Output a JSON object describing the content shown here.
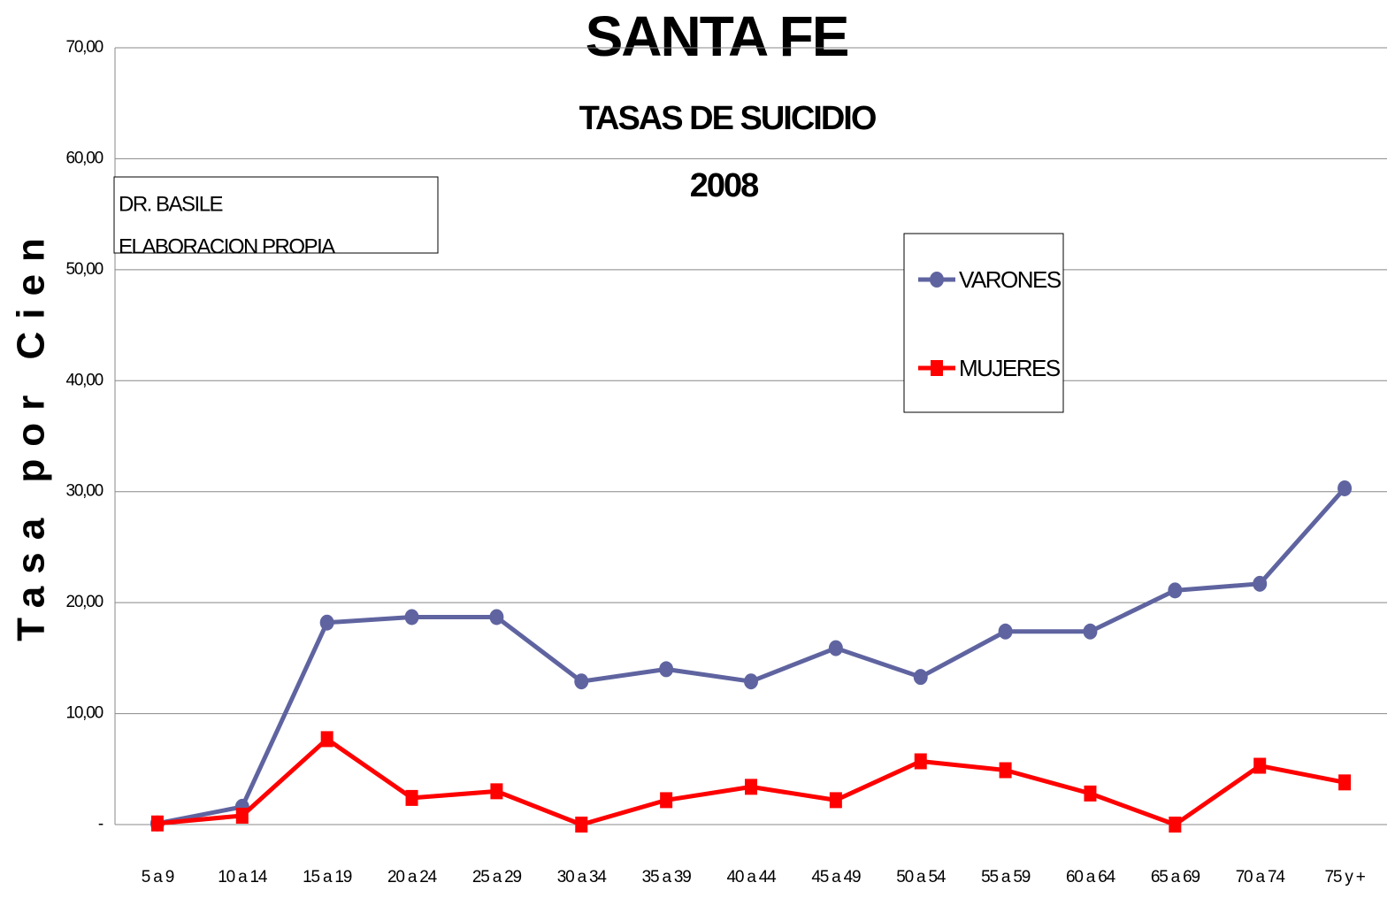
{
  "chart_data": {
    "type": "line",
    "title": "SANTA FE",
    "subtitle": "TASAS DE SUICIDIO",
    "year": "2008",
    "y_label": "Tasa por Cien",
    "annotations": [
      "DR. BASILE",
      "ELABORACION PROPIA"
    ],
    "categories": [
      "5 a 9",
      "10 a 14",
      "15 a 19",
      "20 a 24",
      "25 a 29",
      "30 a 34",
      "35 a 39",
      "40 a 44",
      "45 a 49",
      "50 a 54",
      "55 a 59",
      "60 a 64",
      "65 a 69",
      "70 a 74",
      "75 y +"
    ],
    "series": [
      {
        "name": "VARONES",
        "color": "#5f64a0",
        "marker": "circle",
        "values": [
          0.1,
          1.6,
          18.2,
          18.7,
          18.7,
          12.9,
          14.0,
          12.9,
          15.9,
          13.3,
          17.4,
          17.4,
          21.1,
          21.7,
          30.3
        ]
      },
      {
        "name": "MUJERES",
        "color": "#ff0000",
        "marker": "square",
        "values": [
          0.1,
          0.8,
          7.7,
          2.4,
          3.0,
          0,
          2.2,
          3.4,
          2.2,
          5.7,
          4.9,
          2.8,
          0,
          5.3,
          3.8
        ]
      }
    ],
    "ylim": [
      0,
      70
    ],
    "yticks": [
      {
        "value": 0,
        "label": "-"
      },
      {
        "value": 10,
        "label": "10,00"
      },
      {
        "value": 20,
        "label": "20,00"
      },
      {
        "value": 30,
        "label": "30,00"
      },
      {
        "value": 40,
        "label": "40,00"
      },
      {
        "value": 50,
        "label": "50,00"
      },
      {
        "value": 60,
        "label": "60,00"
      },
      {
        "value": 70,
        "label": "70,00"
      }
    ],
    "grid": true
  }
}
